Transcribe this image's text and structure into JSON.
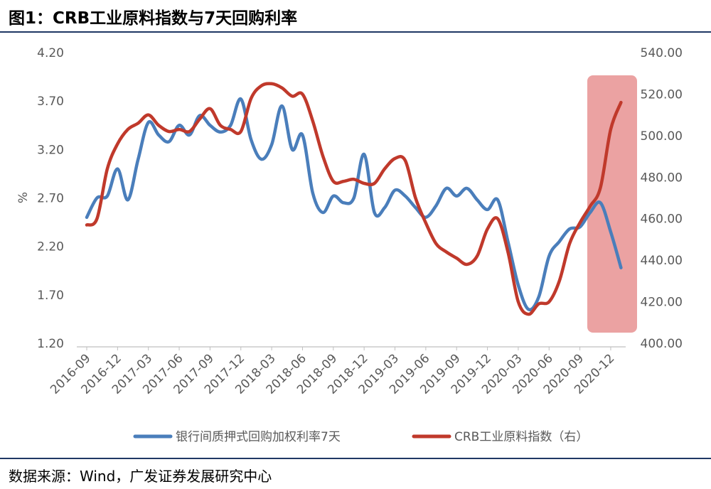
{
  "header": {
    "title": "图1：CRB工业原料指数与7天回购利率"
  },
  "footer": {
    "source": "数据来源：Wind，广发证券发展研究中心"
  },
  "colors": {
    "repo": "#4a7ebb",
    "crb": "#c0392b",
    "highlight": "#e07070",
    "header_rule": "#1f3864"
  },
  "chart_data": {
    "type": "line",
    "title": "图1：CRB工业原料指数与7天回购利率",
    "ylabel": "%",
    "ylabel_right": "",
    "ylim": [
      1.2,
      4.2
    ],
    "ylim_right": [
      400,
      540
    ],
    "yticks": [
      "4.20",
      "3.70",
      "3.20",
      "2.70",
      "2.20",
      "1.70",
      "1.20"
    ],
    "yticks_right": [
      "540.00",
      "520.00",
      "500.00",
      "480.00",
      "460.00",
      "440.00",
      "420.00",
      "400.00"
    ],
    "xticks": [
      "2016-09",
      "2016-12",
      "2017-03",
      "2017-06",
      "2017-09",
      "2017-12",
      "2018-03",
      "2018-06",
      "2018-09",
      "2018-12",
      "2019-03",
      "2019-06",
      "2019-09",
      "2019-12",
      "2020-03",
      "2020-06",
      "2020-09",
      "2020-12"
    ],
    "legend_position": "bottom",
    "grid": false,
    "highlight_region": {
      "x_start": "2020-10.5",
      "x_end": "2021-01.5",
      "note": "shaded box around latest period"
    },
    "series": [
      {
        "name": "银行间质押式回购加权利率7天",
        "axis": "left",
        "color": "#4a7ebb",
        "points": [
          [
            0,
            2.5
          ],
          [
            1,
            2.7
          ],
          [
            2,
            2.72
          ],
          [
            3,
            3.0
          ],
          [
            4,
            2.68
          ],
          [
            5,
            3.1
          ],
          [
            6,
            3.48
          ],
          [
            7,
            3.35
          ],
          [
            8,
            3.28
          ],
          [
            9,
            3.45
          ],
          [
            10,
            3.35
          ],
          [
            11,
            3.55
          ],
          [
            12,
            3.45
          ],
          [
            13,
            3.38
          ],
          [
            14,
            3.45
          ],
          [
            15,
            3.72
          ],
          [
            16,
            3.3
          ],
          [
            17,
            3.1
          ],
          [
            18,
            3.25
          ],
          [
            19,
            3.65
          ],
          [
            20,
            3.2
          ],
          [
            21,
            3.35
          ],
          [
            22,
            2.75
          ],
          [
            23,
            2.55
          ],
          [
            24,
            2.72
          ],
          [
            25,
            2.65
          ],
          [
            26,
            2.7
          ],
          [
            27,
            3.15
          ],
          [
            28,
            2.55
          ],
          [
            29,
            2.6
          ],
          [
            30,
            2.78
          ],
          [
            31,
            2.72
          ],
          [
            32,
            2.6
          ],
          [
            33,
            2.5
          ],
          [
            34,
            2.62
          ],
          [
            35,
            2.8
          ],
          [
            36,
            2.72
          ],
          [
            37,
            2.8
          ],
          [
            38,
            2.68
          ],
          [
            39,
            2.58
          ],
          [
            40,
            2.68
          ],
          [
            41,
            2.25
          ],
          [
            42,
            1.8
          ],
          [
            43,
            1.55
          ],
          [
            44,
            1.68
          ],
          [
            45,
            2.1
          ],
          [
            46,
            2.25
          ],
          [
            47,
            2.38
          ],
          [
            48,
            2.4
          ],
          [
            49,
            2.55
          ],
          [
            50,
            2.65
          ],
          [
            51,
            2.35
          ],
          [
            52,
            1.98
          ]
        ]
      },
      {
        "name": "CRB工业原料指数（右）",
        "axis": "right",
        "color": "#c0392b",
        "points": [
          [
            0,
            457
          ],
          [
            1,
            460
          ],
          [
            2,
            484
          ],
          [
            3,
            496
          ],
          [
            4,
            503
          ],
          [
            5,
            506
          ],
          [
            6,
            510
          ],
          [
            7,
            505
          ],
          [
            8,
            502
          ],
          [
            9,
            503
          ],
          [
            10,
            502
          ],
          [
            11,
            508
          ],
          [
            12,
            513
          ],
          [
            13,
            505
          ],
          [
            14,
            503
          ],
          [
            15,
            502
          ],
          [
            16,
            518
          ],
          [
            17,
            524
          ],
          [
            18,
            525
          ],
          [
            19,
            523
          ],
          [
            20,
            519
          ],
          [
            21,
            520
          ],
          [
            22,
            507
          ],
          [
            23,
            490
          ],
          [
            24,
            478
          ],
          [
            25,
            478
          ],
          [
            26,
            479
          ],
          [
            27,
            477
          ],
          [
            28,
            477
          ],
          [
            29,
            484
          ],
          [
            30,
            489
          ],
          [
            31,
            488
          ],
          [
            32,
            470
          ],
          [
            33,
            458
          ],
          [
            34,
            448
          ],
          [
            35,
            444
          ],
          [
            36,
            441
          ],
          [
            37,
            438
          ],
          [
            38,
            442
          ],
          [
            39,
            455
          ],
          [
            40,
            460
          ],
          [
            41,
            444
          ],
          [
            42,
            420
          ],
          [
            43,
            414
          ],
          [
            44,
            419
          ],
          [
            45,
            420
          ],
          [
            46,
            430
          ],
          [
            47,
            448
          ],
          [
            48,
            458
          ],
          [
            49,
            466
          ],
          [
            50,
            475
          ],
          [
            51,
            503
          ],
          [
            52,
            516
          ]
        ]
      }
    ]
  }
}
